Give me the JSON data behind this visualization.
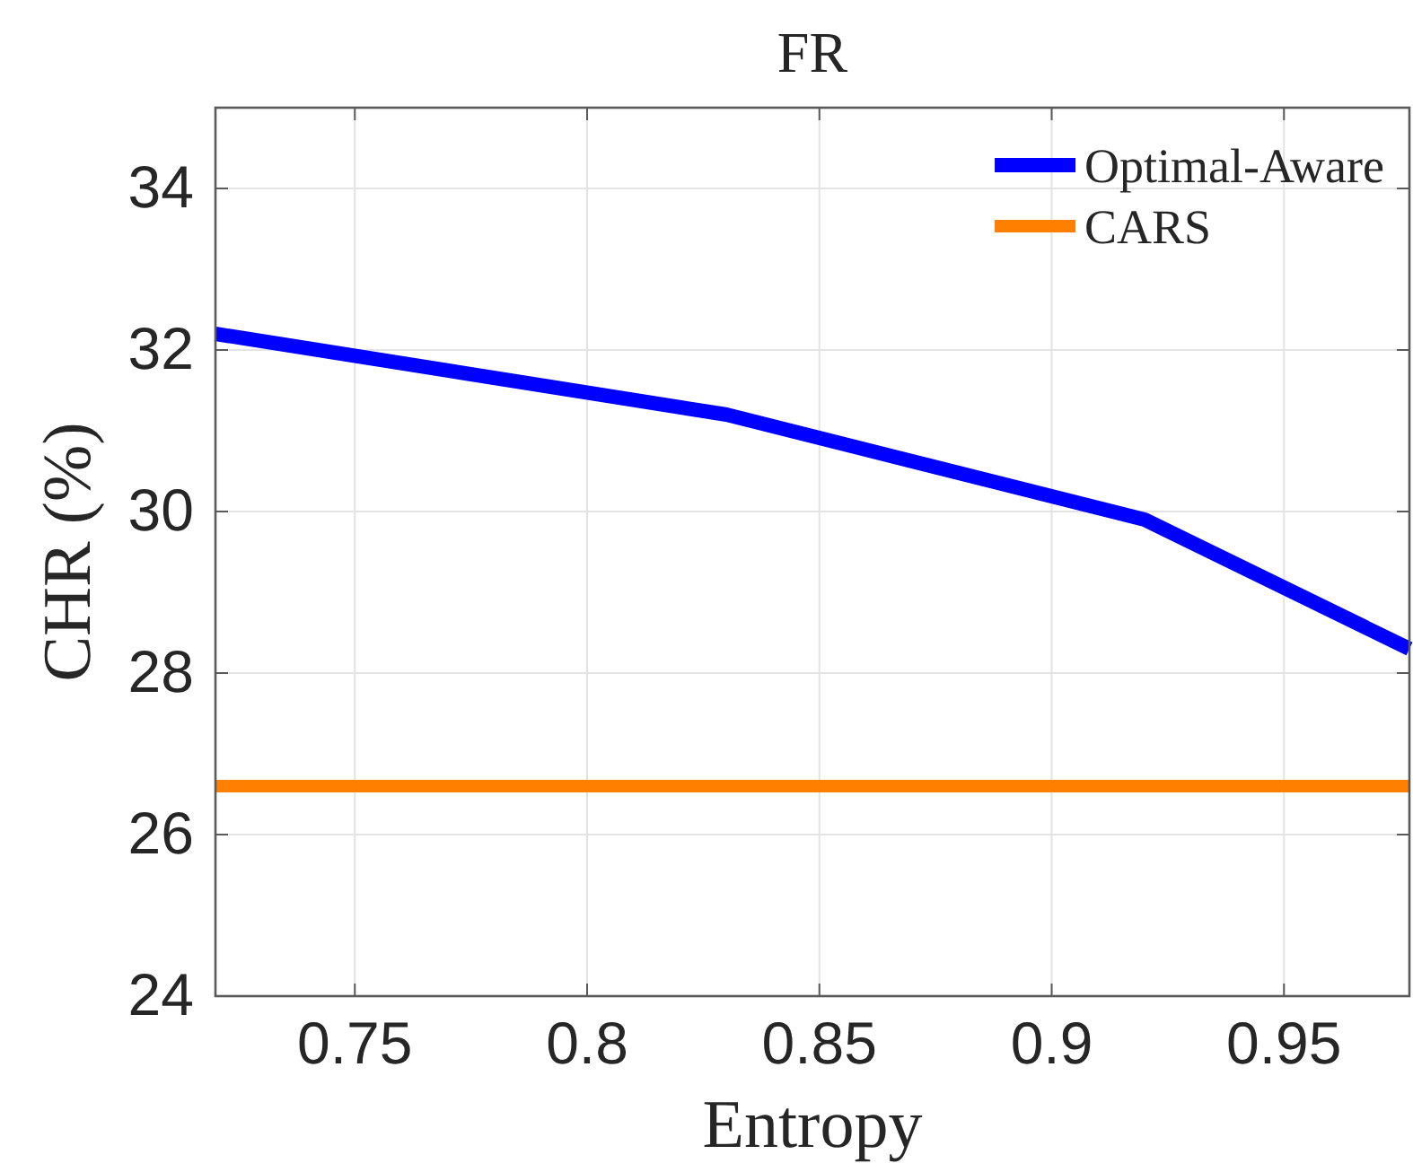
{
  "chart_data": {
    "type": "line",
    "title": "FR",
    "xlabel": "Entropy",
    "ylabel": "CHR (%)",
    "xlim": [
      0.72,
      0.977
    ],
    "ylim": [
      24,
      35
    ],
    "xticks": [
      0.75,
      0.8,
      0.85,
      0.9,
      0.95
    ],
    "yticks": [
      24,
      26,
      28,
      30,
      32,
      34
    ],
    "grid": true,
    "legend": "top right",
    "marker": "none",
    "line_style": "solid",
    "series": [
      {
        "name": "Optimal-Aware",
        "color": "#0000ff",
        "x": [
          0.72,
          0.83,
          0.92,
          0.977
        ],
        "values": [
          32.2,
          31.2,
          29.9,
          28.3
        ]
      },
      {
        "name": "CARS",
        "color": "#ff8000",
        "x": [
          0.72,
          0.977
        ],
        "values": [
          26.6,
          26.6
        ]
      }
    ]
  }
}
